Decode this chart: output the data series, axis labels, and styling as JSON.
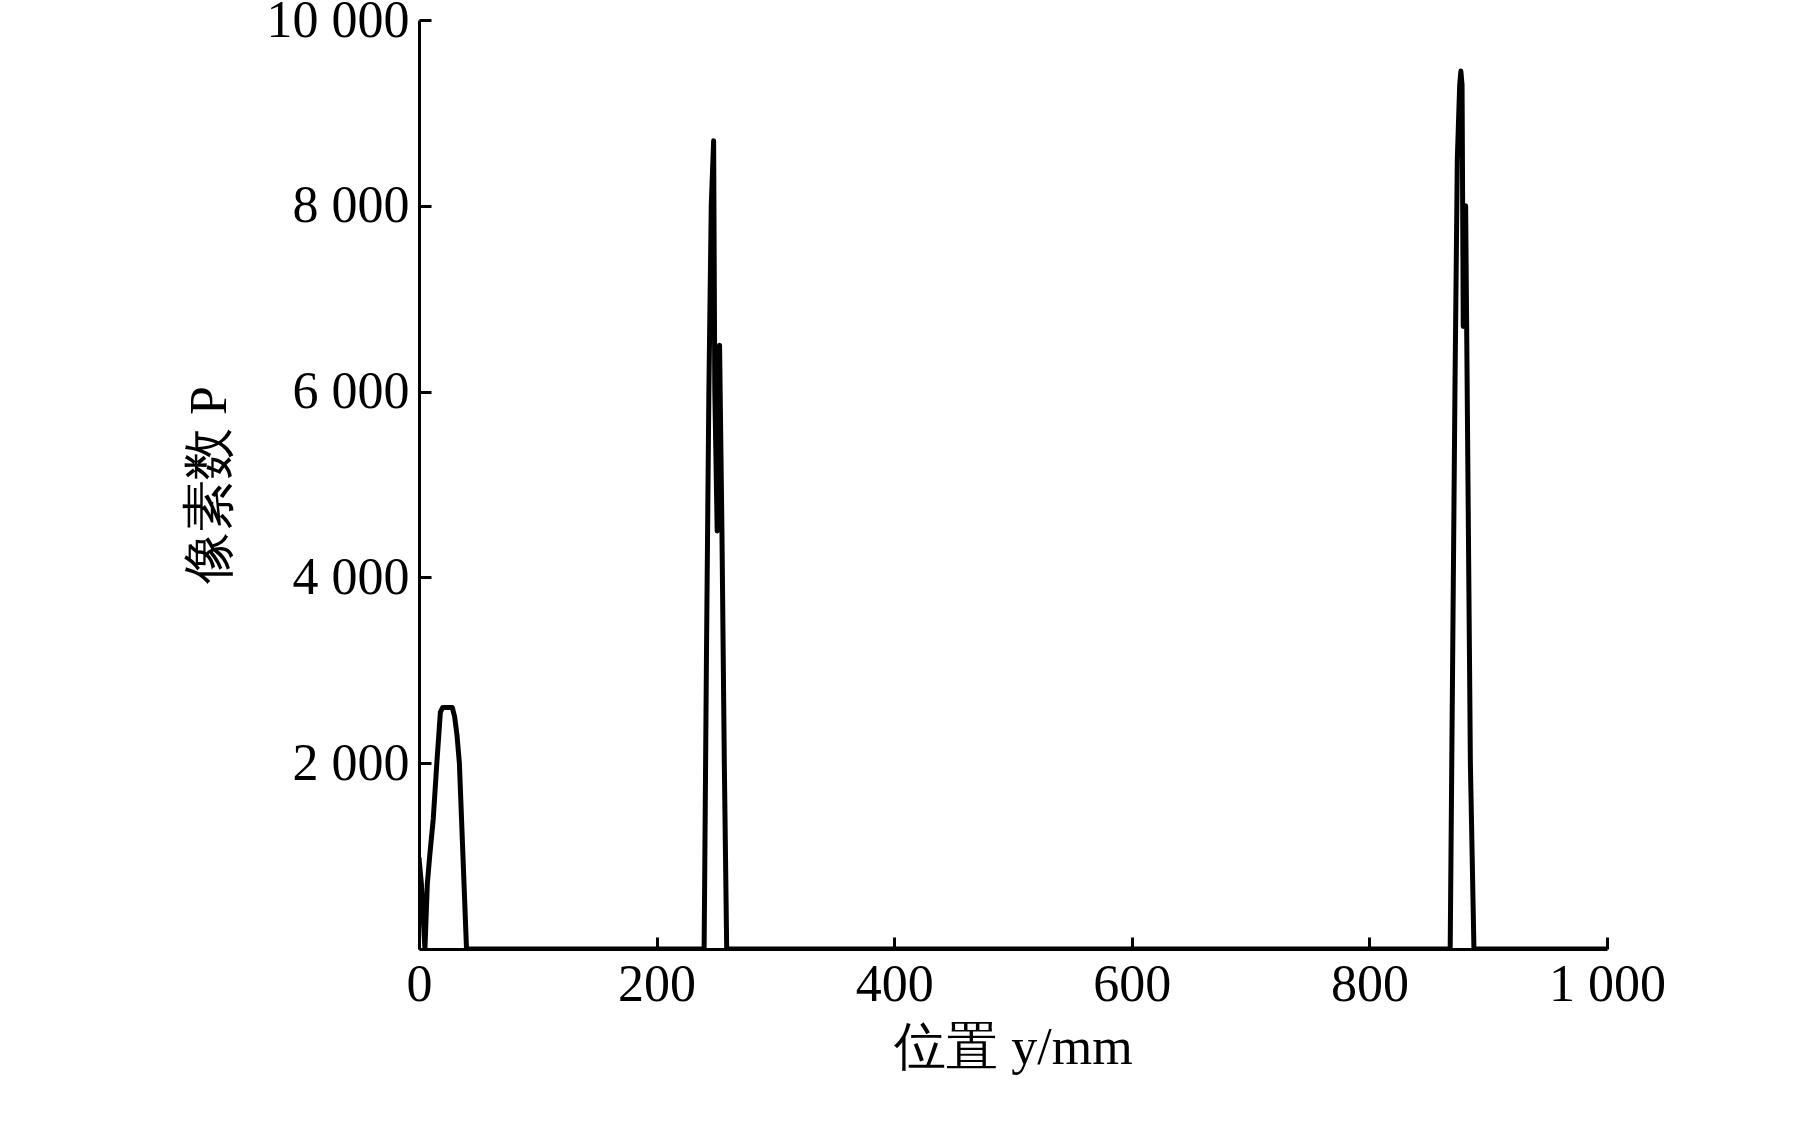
{
  "chart_data": {
    "type": "line",
    "xlabel": "位置 y/mm",
    "ylabel": "像素数 P",
    "x": [
      0,
      2,
      5,
      7,
      9,
      12,
      15,
      18,
      20,
      28,
      30,
      32,
      34,
      37,
      40,
      100,
      200,
      240,
      242,
      244,
      246,
      248,
      249,
      251,
      253,
      255,
      257,
      259,
      300,
      500,
      700,
      800,
      868,
      870,
      872,
      874,
      876,
      877,
      878,
      879,
      881,
      883,
      885,
      888,
      950,
      1000
    ],
    "series": [
      {
        "color": "#000000",
        "values": [
          980,
          700,
          0,
          700,
          1000,
          1400,
          2000,
          2550,
          2600,
          2600,
          2500,
          2300,
          2000,
          1000,
          0,
          0,
          0,
          0,
          3200,
          6000,
          8000,
          8700,
          6000,
          4500,
          6500,
          4500,
          2000,
          0,
          0,
          0,
          0,
          0,
          0,
          3000,
          6000,
          8500,
          9300,
          9450,
          9300,
          6700,
          8000,
          5000,
          2000,
          0,
          0,
          0
        ]
      }
    ],
    "xlim": [
      0,
      1000
    ],
    "xticks": [
      0,
      200,
      400,
      600,
      800,
      {
        "value": 1000,
        "label": "1 000"
      }
    ],
    "ylim": [
      0,
      10000
    ],
    "yticks": [
      {
        "value": 2000,
        "label": "2 000"
      },
      {
        "value": 4000,
        "label": "4 000"
      },
      {
        "value": 6000,
        "label": "6 000"
      },
      {
        "value": 8000,
        "label": "8 000"
      },
      {
        "value": 10000,
        "label": "10 000"
      }
    ],
    "marker": "none",
    "line_style": "solid"
  }
}
